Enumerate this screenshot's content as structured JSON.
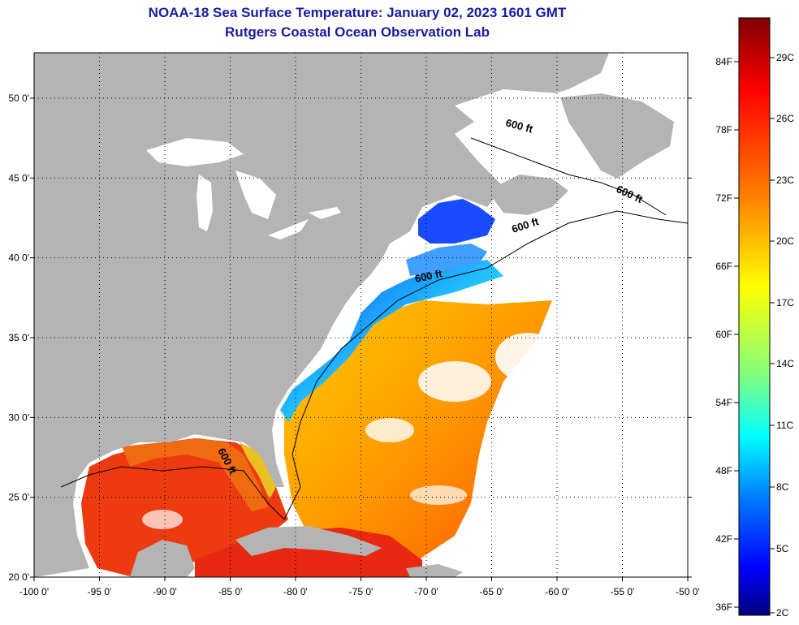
{
  "header": {
    "title_line1": "NOAA-18 Sea Surface Temperature:  January 02, 2023 1601 GMT",
    "title_line2": "Rutgers Coastal Ocean Observation Lab"
  },
  "map": {
    "lon_range": [
      -100,
      -50
    ],
    "lat_range": [
      20,
      52
    ],
    "lon_ticks": [
      "-100 0'",
      "-95 0'",
      "-90 0'",
      "-85 0'",
      "-80 0'",
      "-75 0'",
      "-70 0'",
      "-65 0'",
      "-60 0'",
      "-55 0'",
      "-50 0'"
    ],
    "lat_ticks": [
      "20 0'",
      "25 0'",
      "30 0'",
      "35 0'",
      "40 0'",
      "45 0'",
      "50 0'"
    ],
    "contour_label": "600 ft",
    "colors": {
      "land": "#b4b4b4",
      "no_data": "#ffffff",
      "gridline": "#000000"
    }
  },
  "colorbar": {
    "fahrenheit_labels": [
      "84F",
      "78F",
      "72F",
      "66F",
      "60F",
      "54F",
      "48F",
      "42F",
      "36F"
    ],
    "celsius_labels": [
      "29C",
      "26C",
      "23C",
      "20C",
      "17C",
      "14C",
      "11C",
      "8C",
      "5C",
      "2C"
    ],
    "gradient_colors": [
      "#7f0000",
      "#ff0000",
      "#ff8000",
      "#ffff00",
      "#80ff80",
      "#00ffff",
      "#0080ff",
      "#0000ff",
      "#00007f"
    ]
  }
}
